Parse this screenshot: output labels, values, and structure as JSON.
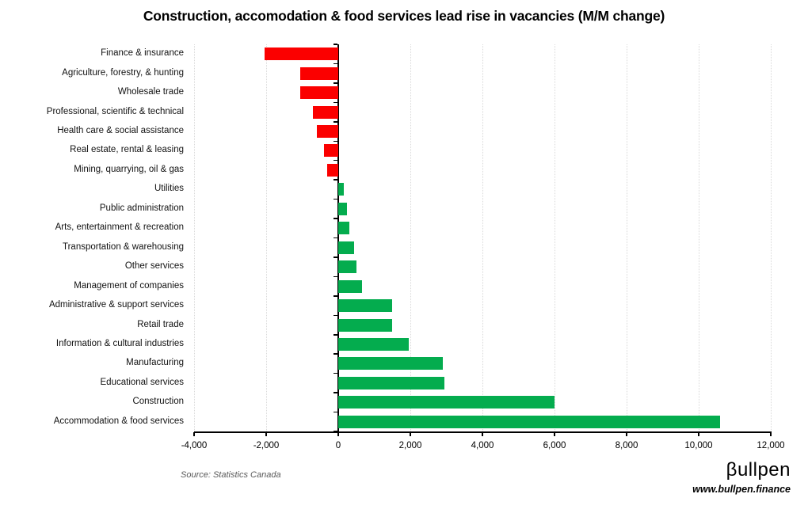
{
  "chart_data": {
    "type": "bar",
    "orientation": "horizontal",
    "title": "Construction, accomodation & food services lead rise in vacancies (M/M change)",
    "categories": [
      "Finance & insurance",
      "Agriculture, forestry, & hunting",
      "Wholesale trade",
      "Professional, scientific & technical",
      "Health care & social assistance",
      "Real estate, rental & leasing",
      "Mining, quarrying, oil & gas",
      "Utilities",
      "Public administration",
      "Arts, entertainment & recreation",
      "Transportation & warehousing",
      "Other services",
      "Management of companies",
      "Administrative & support services",
      "Retail trade",
      "Information & cultural industries",
      "Manufacturing",
      "Educational services",
      "Construction",
      "Accommodation & food services"
    ],
    "values": [
      -2050,
      -1050,
      -1050,
      -700,
      -600,
      -400,
      -300,
      150,
      250,
      300,
      450,
      500,
      650,
      1500,
      1500,
      1950,
      2900,
      2950,
      6000,
      10600
    ],
    "xlabel": "",
    "ylabel": "",
    "xlim": [
      -4000,
      12000
    ],
    "xticks": [
      -4000,
      -2000,
      0,
      2000,
      4000,
      6000,
      8000,
      10000,
      12000
    ],
    "xtick_labels": [
      "-4,000",
      "-2,000",
      "0",
      "2,000",
      "4,000",
      "6,000",
      "8,000",
      "10,000",
      "12,000"
    ],
    "grid": "dotted vertical gridlines at 2,000 intervals, none at zero",
    "legend": "none",
    "colors": {
      "positive": "#04AC4E",
      "negative": "#FB0000",
      "gridline": "#D9D9D9",
      "axis": "#000000"
    }
  },
  "footer": {
    "source": "Source: Statistics Canada",
    "brand": "βullpen",
    "website": "www.bullpen.finance"
  }
}
